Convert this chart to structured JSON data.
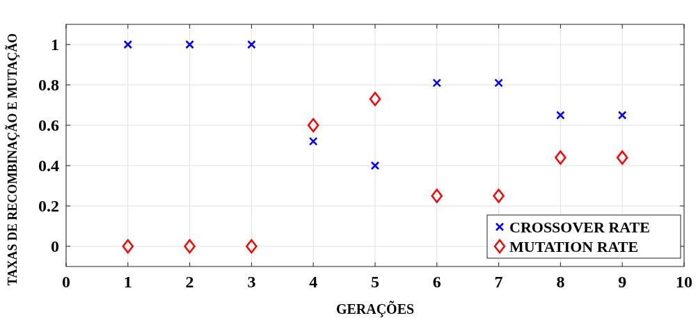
{
  "chart_data": {
    "type": "scatter",
    "xlabel": "GERAÇÕES",
    "ylabel": "TAXAS DE RECOMBINAÇÃO E MUTAÇÃO",
    "x": [
      1,
      2,
      3,
      4,
      5,
      6,
      7,
      8,
      9
    ],
    "series": [
      {
        "name": "CROSSOVER RATE",
        "color": "#0000ff",
        "marker": "cross",
        "values": [
          1,
          1,
          1,
          0.52,
          0.4,
          0.81,
          0.81,
          0.65,
          0.65
        ]
      },
      {
        "name": "MUTATION RATE",
        "color": "#ff0000",
        "marker": "diamond",
        "values": [
          0,
          0,
          0,
          0.6,
          0.73,
          0.25,
          0.25,
          0.44,
          0.44
        ]
      }
    ],
    "xlim": [
      0,
      10
    ],
    "xticks": [
      0,
      1,
      2,
      3,
      4,
      5,
      6,
      7,
      8,
      9,
      10
    ],
    "ylim": [
      -0.1,
      1.1
    ],
    "yticks": [
      0,
      0.2,
      0.4,
      0.6,
      0.8,
      1
    ],
    "grid": true,
    "legend": "bottom right"
  }
}
